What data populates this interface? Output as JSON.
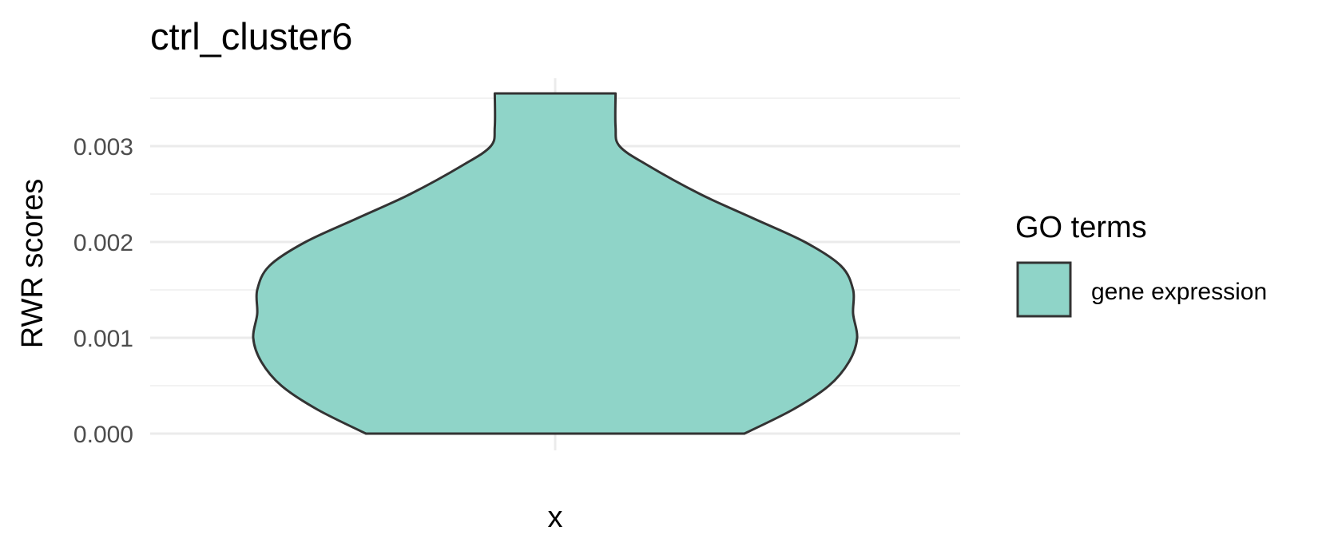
{
  "chart_data": {
    "type": "violin",
    "title": "ctrl_cluster6",
    "xlabel": "x",
    "ylabel": "RWR scores",
    "categories": [
      ""
    ],
    "ylim": [
      -0.000175,
      0.00355
    ],
    "y_ticks": [
      0.0,
      0.001,
      0.002,
      0.003
    ],
    "y_tick_labels": [
      "0.000",
      "0.001",
      "0.002",
      "0.003"
    ],
    "grid": true,
    "legend": {
      "title": "GO terms",
      "position": "right",
      "entries": [
        {
          "label": "gene expression",
          "color": "#8fd4c8"
        }
      ]
    },
    "series": [
      {
        "name": "gene expression",
        "color": "#8fd4c8",
        "outline": "#333333",
        "range": [
          0.0,
          0.00355
        ],
        "density_profile": [
          {
            "y": 0.0,
            "width": 0.47
          },
          {
            "y": 0.00025,
            "width": 0.59
          },
          {
            "y": 0.0005,
            "width": 0.68
          },
          {
            "y": 0.00075,
            "width": 0.73
          },
          {
            "y": 0.001,
            "width": 0.75
          },
          {
            "y": 0.00125,
            "width": 0.74
          },
          {
            "y": 0.0015,
            "width": 0.74
          },
          {
            "y": 0.00175,
            "width": 0.71
          },
          {
            "y": 0.002,
            "width": 0.62
          },
          {
            "y": 0.00225,
            "width": 0.49
          },
          {
            "y": 0.0025,
            "width": 0.36
          },
          {
            "y": 0.0028,
            "width": 0.23
          },
          {
            "y": 0.003,
            "width": 0.16
          },
          {
            "y": 0.0032,
            "width": 0.15
          },
          {
            "y": 0.00355,
            "width": 0.15
          }
        ]
      }
    ]
  }
}
